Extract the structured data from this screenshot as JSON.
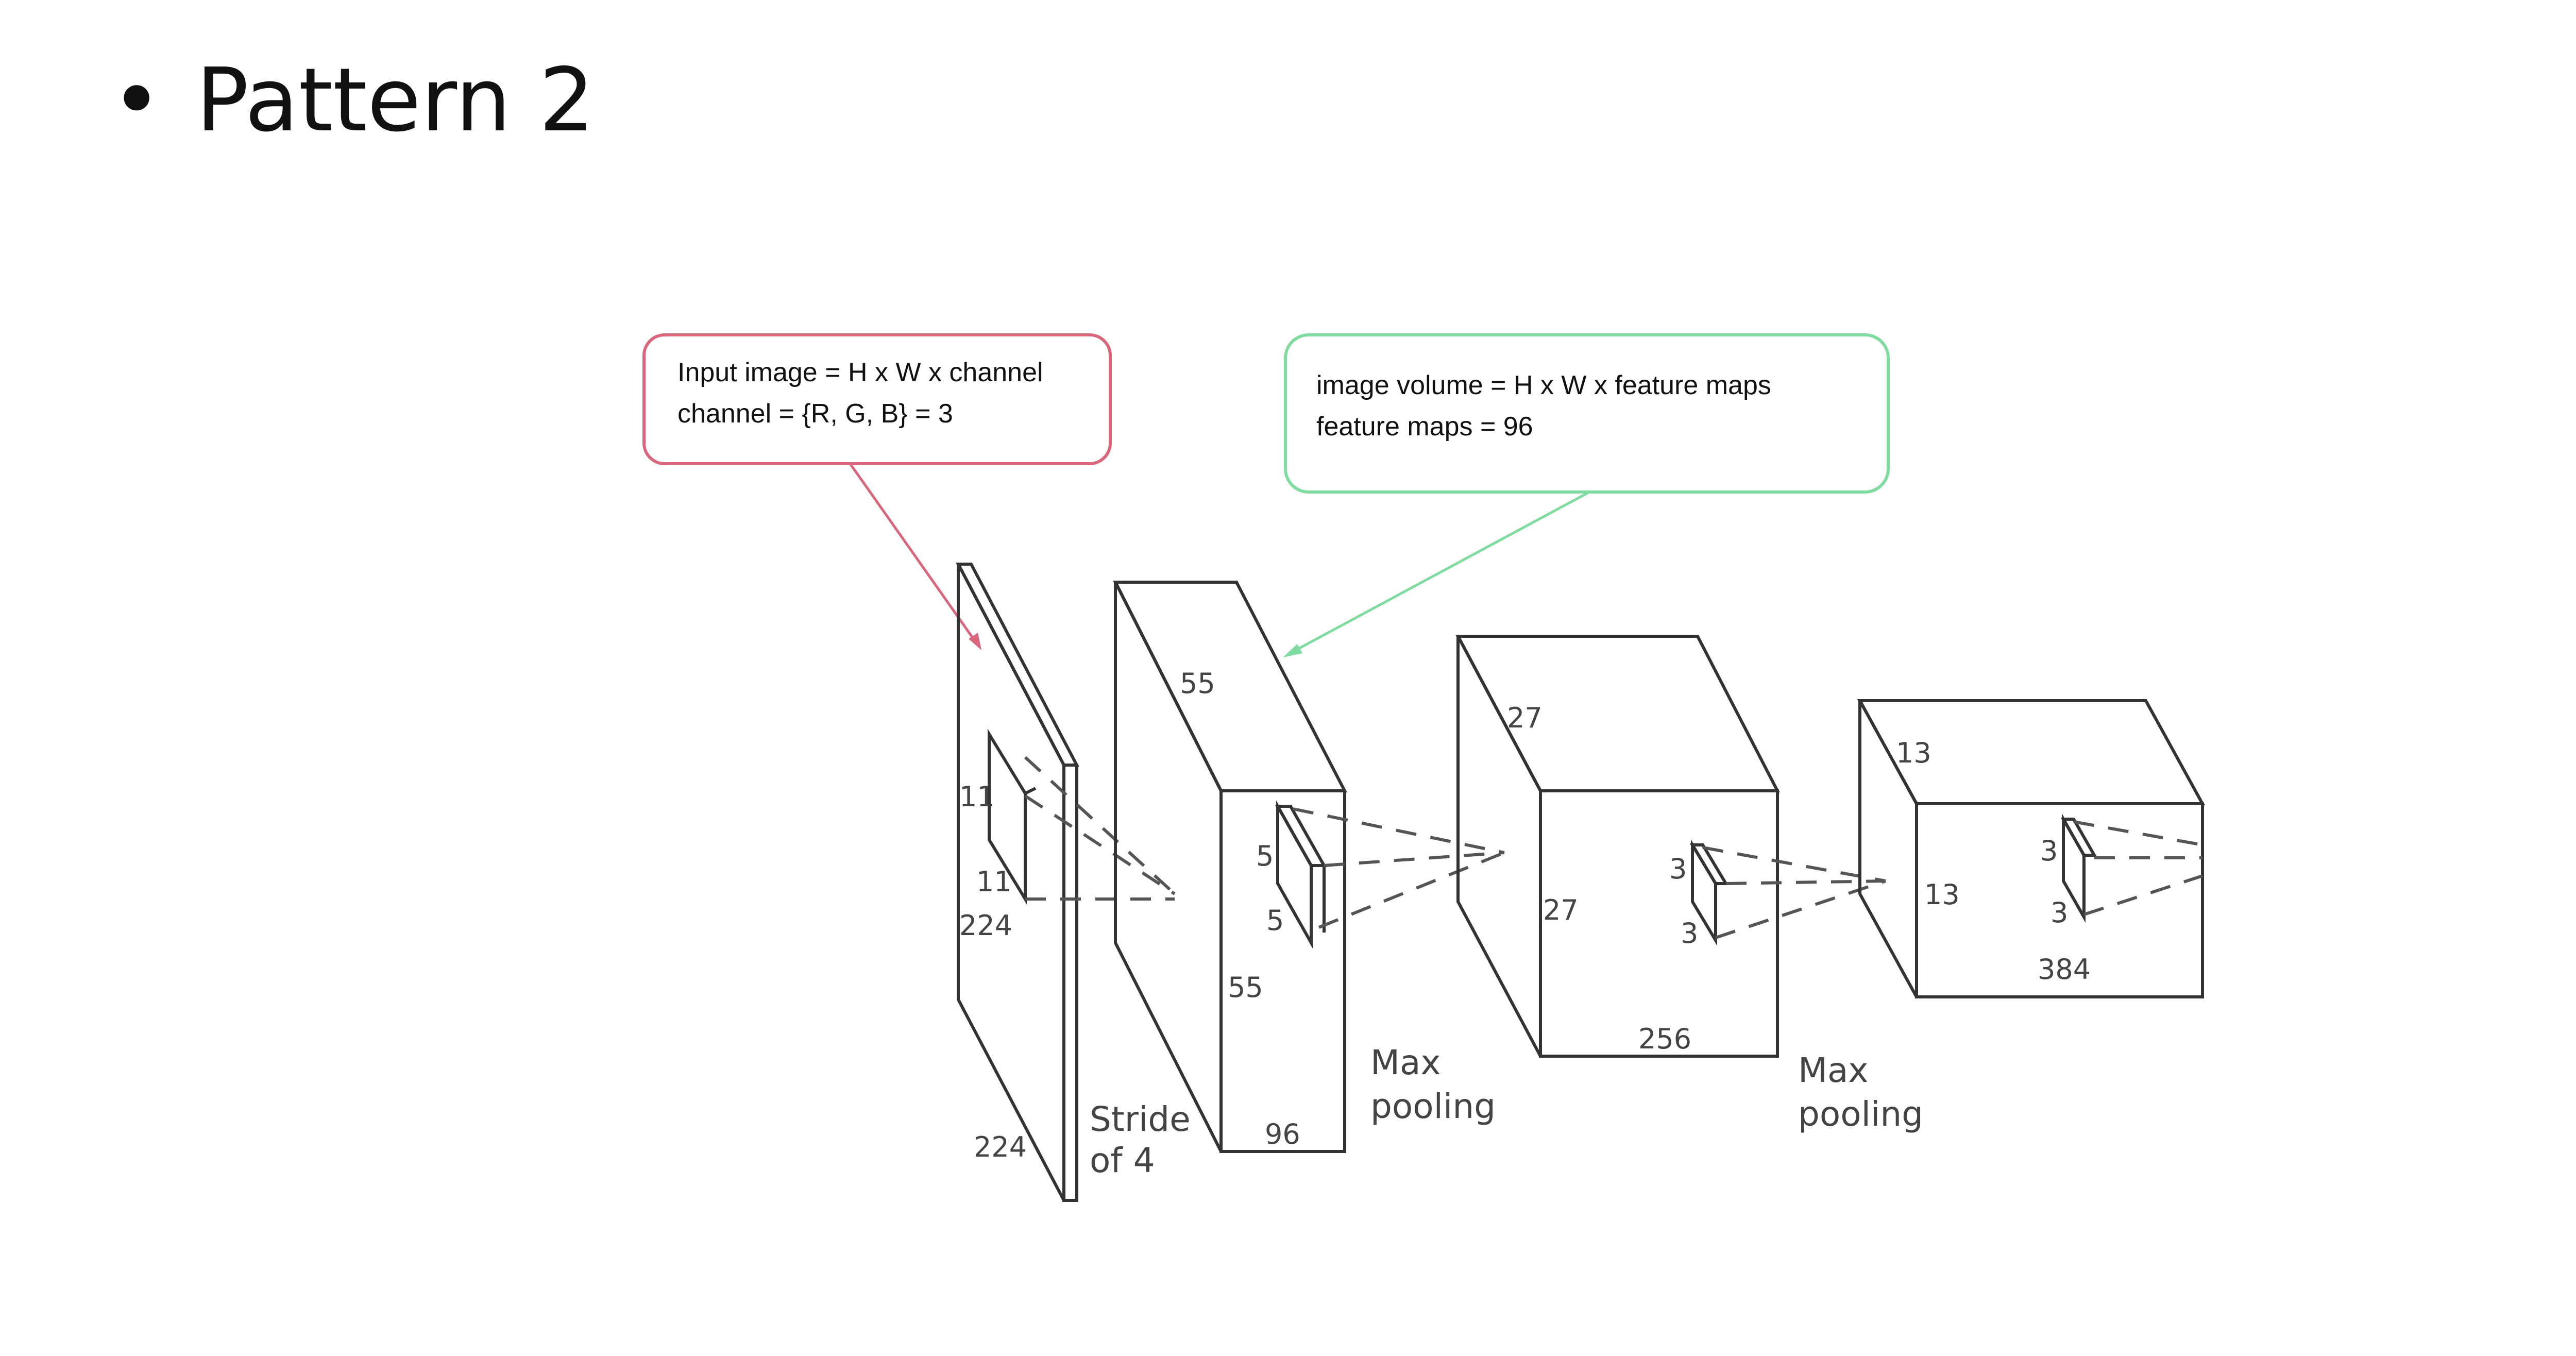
{
  "slide": {
    "bullet": "•",
    "title": "Pattern 2"
  },
  "callouts": {
    "input": {
      "line1": "Input image = H x W x channel",
      "line2": "channel = {R, G, B} = 3",
      "border_color": "#d9667a"
    },
    "volume": {
      "line1": "image volume = H x W x feature maps",
      "line2": "feature maps = 96",
      "border_color": "#7fdba0"
    }
  },
  "diagram": {
    "input_layer": {
      "height": "224",
      "width": "224",
      "kernel_h": "11",
      "kernel_w": "11"
    },
    "stride_label": {
      "line1": "Stride",
      "line2": "of 4"
    },
    "conv1": {
      "height": "55",
      "width": "55",
      "depth": "96",
      "kernel_h": "5",
      "kernel_w": "5"
    },
    "pool1": {
      "line1": "Max",
      "line2": "pooling"
    },
    "conv2": {
      "height": "27",
      "width": "27",
      "depth": "256",
      "kernel_h": "3",
      "kernel_w": "3"
    },
    "pool2": {
      "line1": "Max",
      "line2": "pooling"
    },
    "conv3": {
      "height": "13",
      "width": "13",
      "depth": "384",
      "kernel_h": "3",
      "kernel_w": "3"
    }
  }
}
